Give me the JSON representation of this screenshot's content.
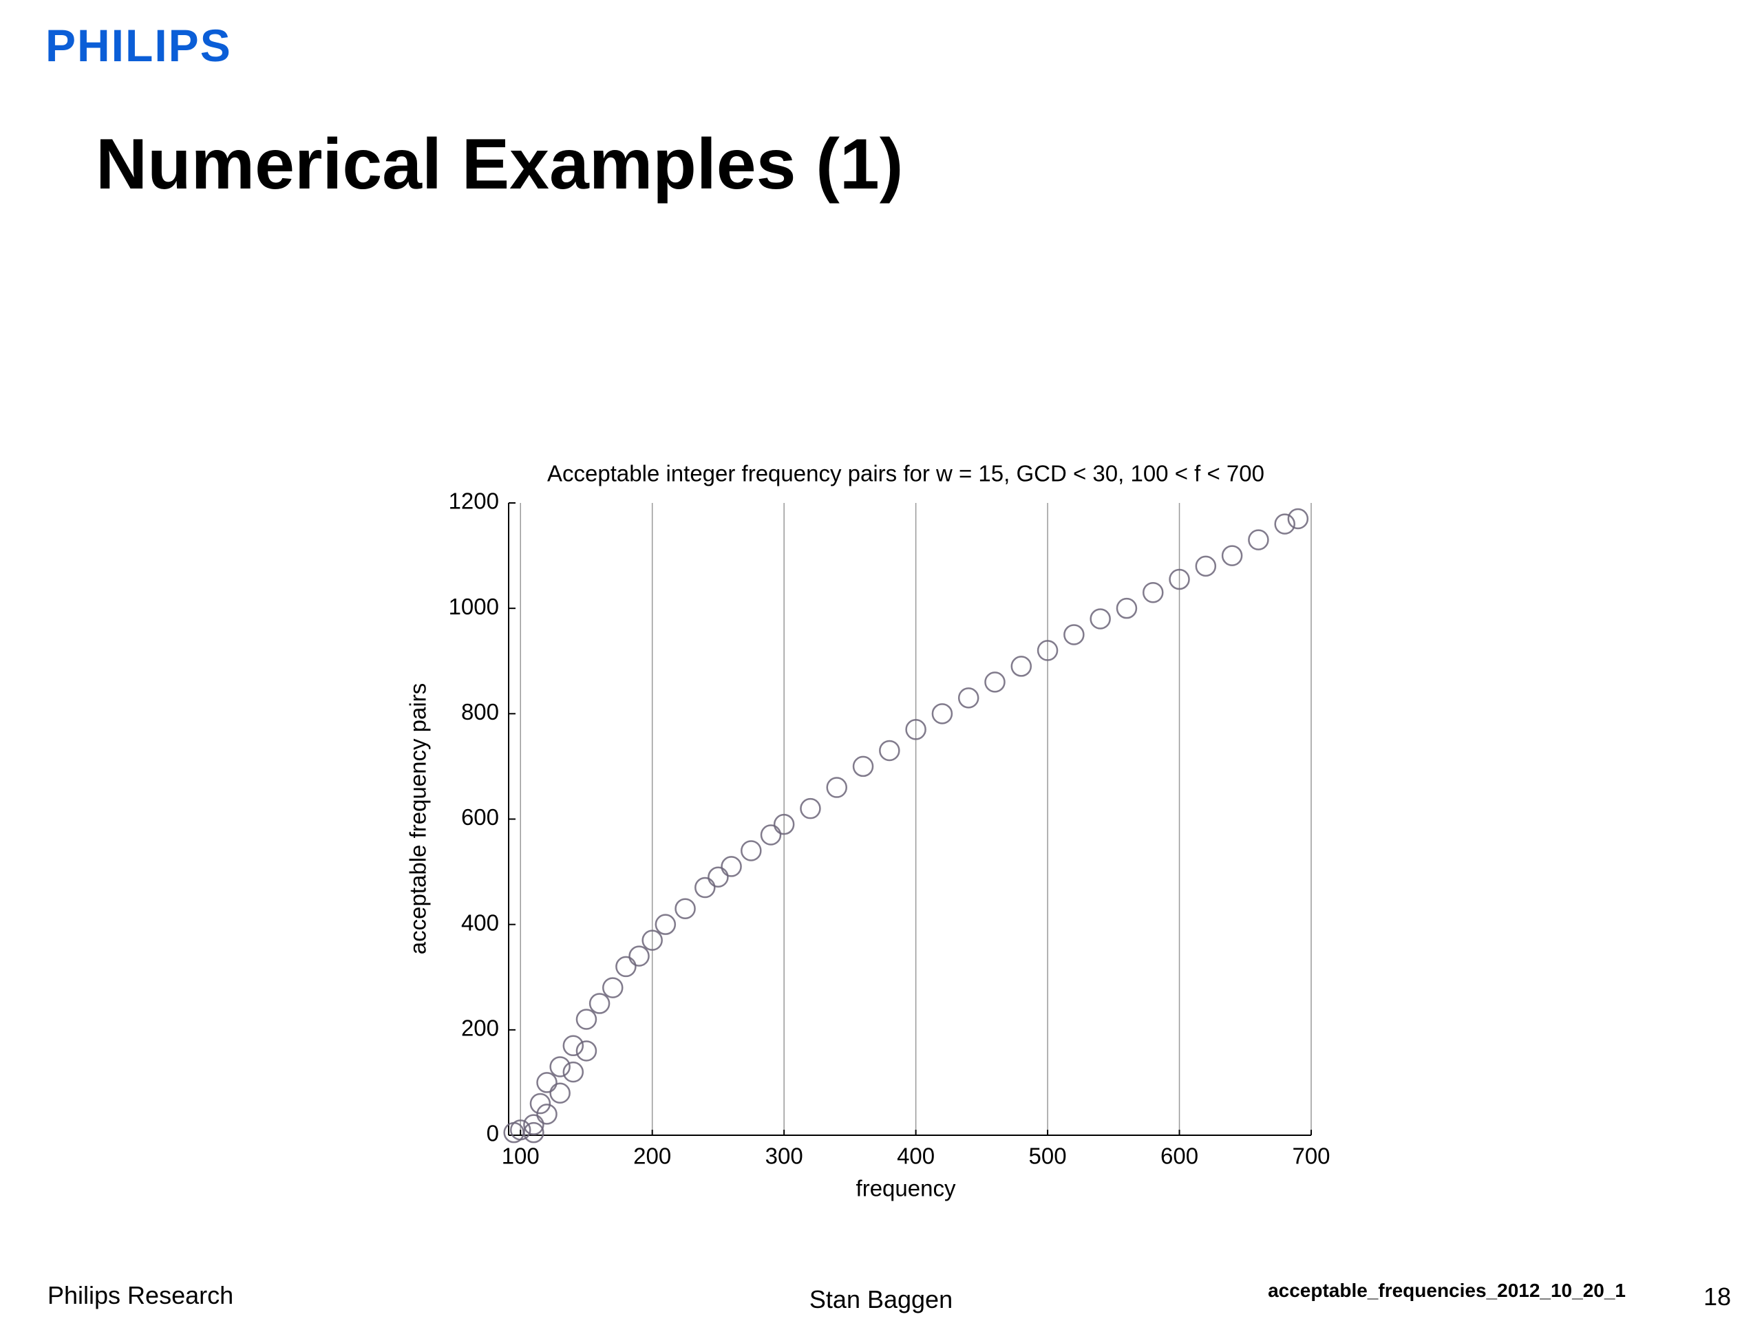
{
  "header": {
    "logo": "PHILIPS",
    "title": "Numerical Examples (1)"
  },
  "footer": {
    "left": "Philips Research",
    "center": "Stan Baggen",
    "file": "acceptable_frequencies_2012_10_20_1",
    "page": "18"
  },
  "chart_data": {
    "type": "scatter",
    "title": "Acceptable integer frequency pairs for w = 15, GCD < 30, 100 < f < 700",
    "x_label": "frequency",
    "y_label": "acceptable frequency pairs",
    "xlim": [
      91,
      700
    ],
    "ylim": [
      0,
      1200
    ],
    "xticks": [
      100,
      200,
      300,
      400,
      500,
      600,
      700
    ],
    "yticks": [
      0,
      200,
      400,
      600,
      800,
      1000,
      1200
    ],
    "grid": "x",
    "series": [
      {
        "name": "pairs",
        "color": "#6b6478",
        "x": [
          95,
          100,
          110,
          110,
          115,
          120,
          120,
          130,
          130,
          140,
          140,
          150,
          150,
          160,
          170,
          180,
          190,
          200,
          210,
          225,
          240,
          250,
          260,
          275,
          290,
          300,
          320,
          340,
          360,
          380,
          400,
          420,
          440,
          460,
          480,
          500,
          520,
          540,
          560,
          580,
          600,
          620,
          640,
          660,
          680,
          690
        ],
        "values": [
          5,
          10,
          20,
          5,
          60,
          100,
          40,
          130,
          80,
          170,
          120,
          220,
          160,
          250,
          280,
          320,
          340,
          370,
          400,
          430,
          470,
          490,
          510,
          540,
          570,
          590,
          620,
          660,
          700,
          730,
          770,
          800,
          830,
          860,
          890,
          920,
          950,
          980,
          1000,
          1030,
          1055,
          1080,
          1100,
          1130,
          1160,
          1170
        ]
      }
    ]
  }
}
